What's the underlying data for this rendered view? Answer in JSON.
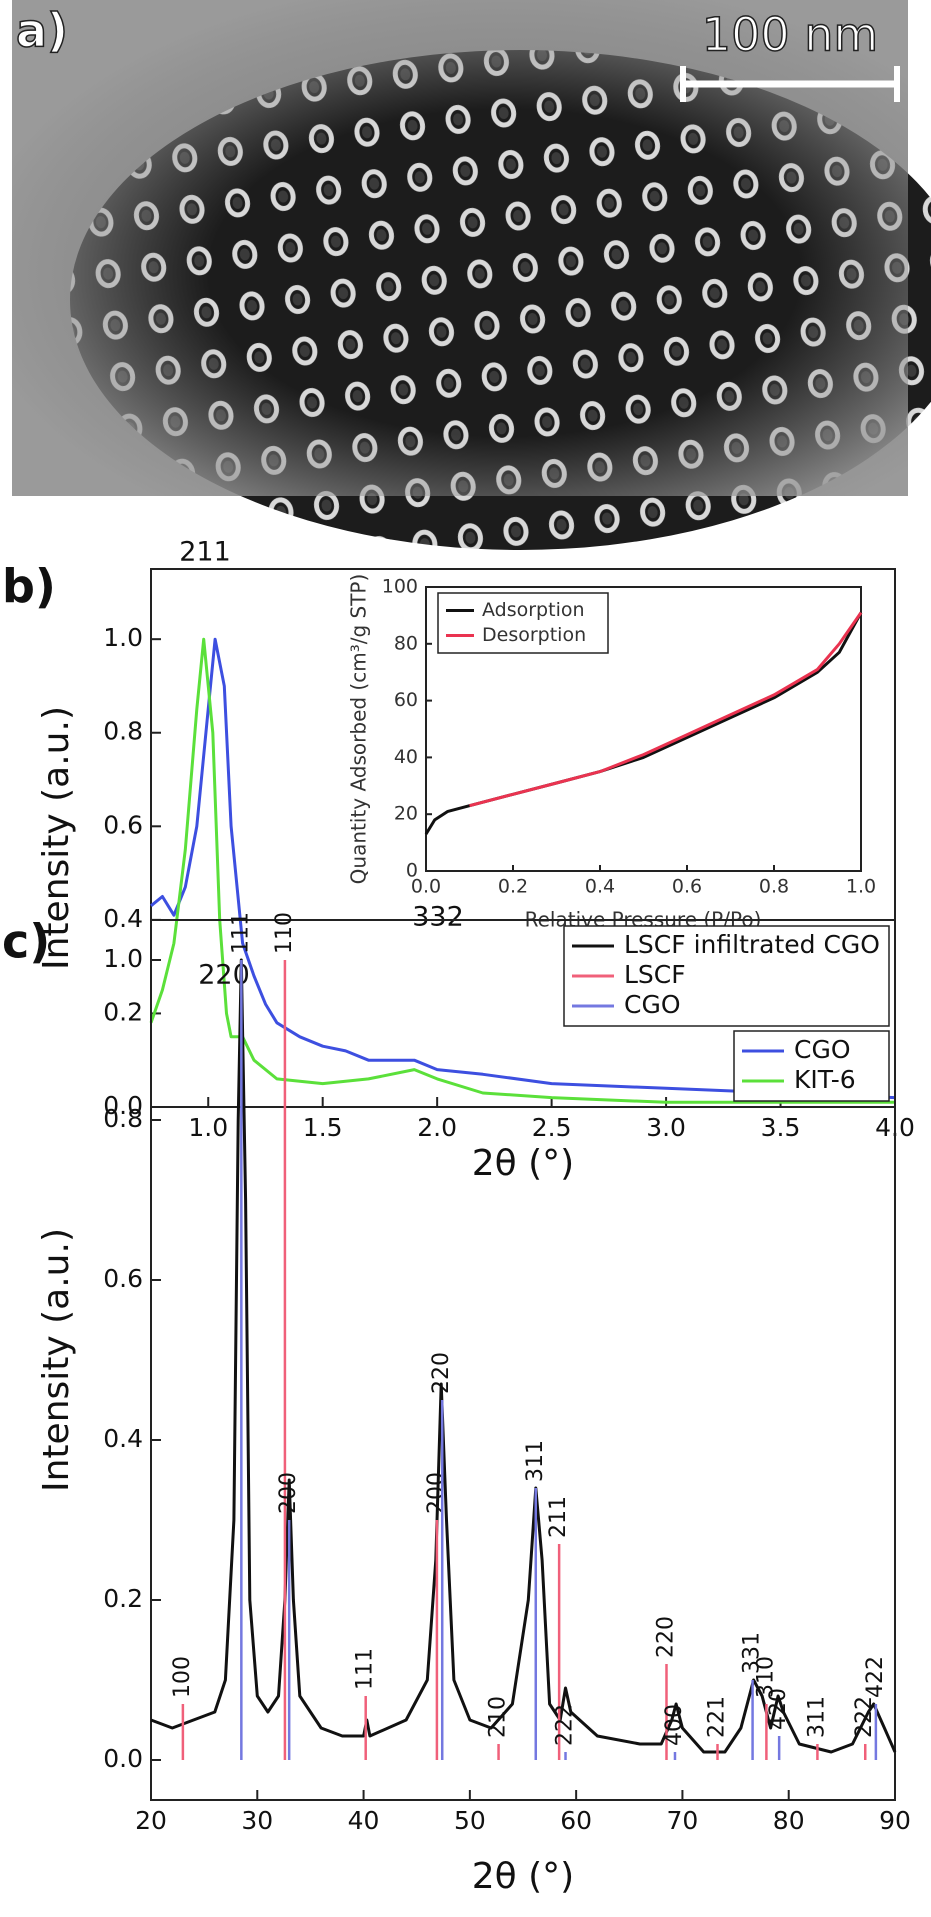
{
  "image": {
    "label": "a)",
    "scale_bar": "100 nm"
  },
  "chart_data": [
    {
      "type": "line",
      "panel_label": "b)",
      "xlabel": "2θ (°)",
      "ylabel": "Intensity (a.u.)",
      "xlim": [
        0.75,
        4.0
      ],
      "ylim": [
        0,
        1.15
      ],
      "xticks": [
        {
          "value": 1,
          "label": "1.0"
        },
        1.5,
        {
          "value": 2,
          "label": "2.0"
        },
        2.5,
        {
          "value": 3,
          "label": "3.0"
        },
        3.5,
        {
          "value": 4,
          "label": "4.0"
        }
      ],
      "yticks": [
        {
          "value": 0,
          "label": "0.0"
        },
        0.2,
        0.4,
        0.6,
        0.8,
        {
          "value": 1,
          "label": "1.0"
        }
      ],
      "legend": "lower right",
      "annotations": [
        {
          "text": "211"
        },
        {
          "text": "220"
        },
        {
          "text": "332"
        }
      ],
      "series": [
        {
          "name": "CGO",
          "color": "#3d4fe0",
          "x": [
            0.75,
            0.8,
            0.85,
            0.9,
            0.95,
            1.0,
            1.03,
            1.07,
            1.1,
            1.15,
            1.2,
            1.25,
            1.3,
            1.4,
            1.5,
            1.6,
            1.7,
            1.8,
            1.9,
            2.0,
            2.2,
            2.5,
            3.0,
            3.5,
            4.0
          ],
          "values": [
            0.43,
            0.45,
            0.41,
            0.47,
            0.6,
            0.85,
            1.0,
            0.9,
            0.6,
            0.35,
            0.28,
            0.22,
            0.18,
            0.15,
            0.13,
            0.12,
            0.1,
            0.1,
            0.1,
            0.08,
            0.07,
            0.05,
            0.04,
            0.03,
            0.02
          ]
        },
        {
          "name": "KIT-6",
          "color": "#5be03a",
          "x": [
            0.75,
            0.8,
            0.85,
            0.9,
            0.95,
            0.98,
            1.02,
            1.05,
            1.08,
            1.1,
            1.15,
            1.2,
            1.3,
            1.5,
            1.7,
            1.9,
            2.0,
            2.2,
            2.5,
            3.0,
            4.0
          ],
          "values": [
            0.18,
            0.25,
            0.35,
            0.55,
            0.85,
            1.0,
            0.8,
            0.4,
            0.2,
            0.15,
            0.15,
            0.1,
            0.06,
            0.05,
            0.06,
            0.08,
            0.06,
            0.03,
            0.02,
            0.01,
            0.01
          ]
        }
      ]
    },
    {
      "type": "line",
      "xlabel": "Relative Pressure (P/Po)",
      "ylabel": "Quantity Adsorbed (cm³/g STP)",
      "xlim": [
        0,
        1.0
      ],
      "ylim": [
        0,
        100
      ],
      "xticks": [
        {
          "value": 0,
          "label": "0.0"
        },
        0.2,
        0.4,
        0.6,
        0.8,
        {
          "value": 1,
          "label": "1.0"
        }
      ],
      "yticks": [
        0,
        20,
        40,
        60,
        80,
        100
      ],
      "legend": "upper left",
      "series": [
        {
          "name": "Adsorption",
          "color": "#111111",
          "x": [
            0,
            0.02,
            0.05,
            0.1,
            0.2,
            0.3,
            0.4,
            0.5,
            0.6,
            0.7,
            0.8,
            0.9,
            0.95,
            1.0
          ],
          "values": [
            13,
            18,
            21,
            23,
            27,
            31,
            35,
            40,
            47,
            54,
            61,
            70,
            77,
            91
          ]
        },
        {
          "name": "Desorption",
          "color": "#ea3350",
          "x": [
            0.1,
            0.2,
            0.3,
            0.4,
            0.5,
            0.6,
            0.7,
            0.8,
            0.9,
            0.95,
            1.0
          ],
          "values": [
            23,
            27,
            31,
            35,
            41,
            48,
            55,
            62,
            71,
            80,
            91
          ]
        }
      ]
    },
    {
      "type": "line",
      "panel_label": "c)",
      "xlabel": "2θ (°)",
      "ylabel": "Intensity (a.u.)",
      "xlim": [
        20,
        90
      ],
      "ylim": [
        -0.05,
        1.05
      ],
      "xticks": [
        20,
        30,
        40,
        50,
        60,
        70,
        80,
        90
      ],
      "yticks": [
        {
          "value": 0,
          "label": "0.0"
        },
        0.2,
        0.4,
        0.6,
        0.8,
        {
          "value": 1,
          "label": "1.0"
        }
      ],
      "legend": "upper right",
      "series": [
        {
          "name": "LSCF infiltrated CGO",
          "color": "#111111",
          "type": "line",
          "x": [
            20,
            22,
            24,
            26,
            27,
            27.8,
            28.2,
            28.5,
            28.9,
            29.3,
            30,
            31,
            32,
            32.6,
            33,
            33.4,
            34,
            36,
            38,
            40,
            40.3,
            40.6,
            44,
            46,
            46.8,
            47.3,
            47.8,
            48.5,
            50,
            52,
            54,
            55.5,
            56.2,
            56.8,
            57.5,
            58.5,
            59,
            59.5,
            62,
            66,
            68,
            69,
            69.4,
            70,
            72,
            74,
            75.5,
            76.7,
            77.5,
            78.3,
            79,
            79.5,
            81,
            84,
            86,
            87.5,
            88,
            89,
            90
          ],
          "values": [
            0.05,
            0.04,
            0.05,
            0.06,
            0.1,
            0.3,
            0.8,
            1.0,
            0.7,
            0.2,
            0.08,
            0.06,
            0.08,
            0.2,
            0.35,
            0.2,
            0.08,
            0.04,
            0.03,
            0.03,
            0.05,
            0.03,
            0.05,
            0.1,
            0.25,
            0.47,
            0.3,
            0.1,
            0.05,
            0.04,
            0.07,
            0.2,
            0.34,
            0.25,
            0.07,
            0.05,
            0.09,
            0.06,
            0.03,
            0.02,
            0.02,
            0.05,
            0.07,
            0.04,
            0.01,
            0.01,
            0.04,
            0.1,
            0.08,
            0.04,
            0.08,
            0.06,
            0.02,
            0.01,
            0.02,
            0.06,
            0.07,
            0.04,
            0.01
          ]
        },
        {
          "name": "LSCF",
          "color": "#f0607a",
          "type": "stick",
          "x": [
            23,
            32.6,
            40.2,
            46.9,
            52.7,
            58.4,
            68.5,
            73.3,
            77.9,
            82.7,
            87.2
          ],
          "values": [
            0.07,
            1.0,
            0.08,
            0.3,
            0.02,
            0.27,
            0.12,
            0.02,
            0.07,
            0.02,
            0.02
          ],
          "labels": [
            "100",
            "110",
            "111",
            "200",
            "210",
            "211",
            "220",
            "221",
            "310",
            "311",
            "222"
          ]
        },
        {
          "name": "CGO",
          "color": "#7478e0",
          "type": "stick",
          "x": [
            28.5,
            33.0,
            47.4,
            56.2,
            59.0,
            69.3,
            76.6,
            79.1,
            88.2
          ],
          "values": [
            1.0,
            0.3,
            0.45,
            0.34,
            0.01,
            0.01,
            0.1,
            0.03,
            0.07
          ],
          "labels": [
            "111",
            "200",
            "220",
            "311",
            "222",
            "400",
            "331",
            "420",
            "422"
          ]
        }
      ]
    }
  ]
}
